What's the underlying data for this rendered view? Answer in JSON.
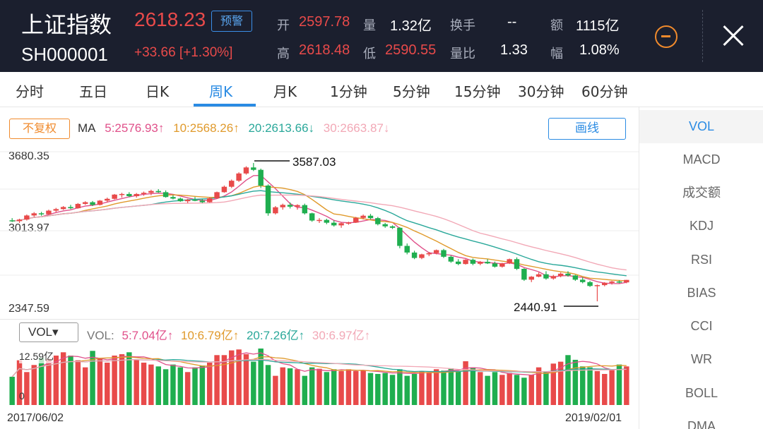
{
  "header": {
    "stock_name": "上证指数",
    "stock_code": "SH000001",
    "price": "2618.23",
    "alert_label": "预警",
    "change": "+33.66  [+1.30%]",
    "quote": [
      {
        "label": "开",
        "value": "2597.78",
        "color": "red"
      },
      {
        "label": "量",
        "value": "1.32亿",
        "color": "white"
      },
      {
        "label": "换手",
        "value": "--",
        "color": "white"
      },
      {
        "label": "额",
        "value": "1115亿",
        "color": "white"
      },
      {
        "label": "高",
        "value": "2618.48",
        "color": "red"
      },
      {
        "label": "低",
        "value": "2590.55",
        "color": "red"
      },
      {
        "label": "量比",
        "value": "1.33",
        "color": "white"
      },
      {
        "label": "幅",
        "value": "1.08%",
        "color": "white"
      }
    ]
  },
  "tabs": [
    "分时",
    "五日",
    "日K",
    "周K",
    "月K",
    "1分钟",
    "5分钟",
    "15分钟",
    "30分钟",
    "60分钟"
  ],
  "active_tab": "周K",
  "chart_toolbar": {
    "fuquan_label": "不复权",
    "draw_label": "画线",
    "ma_prefix": "MA",
    "ma": [
      {
        "text": "5:2576.93↑",
        "color": "#e0508a"
      },
      {
        "text": "10:2568.26↑",
        "color": "#e09a2c"
      },
      {
        "text": "20:2613.66↓",
        "color": "#2aa89a"
      },
      {
        "text": "30:2663.87↓",
        "color": "#f2a8b6"
      }
    ]
  },
  "price_axis": {
    "top": "3680.35",
    "mid": "3013.97",
    "bottom": "2347.59"
  },
  "annotations": {
    "high": "3587.03",
    "low": "2440.91"
  },
  "volume_toolbar": {
    "dropdown": "VOL▾",
    "prefix": "VOL:",
    "ma": [
      {
        "text": "5:7.04亿↑",
        "color": "#e0508a"
      },
      {
        "text": "10:6.79亿↑",
        "color": "#e09a2c"
      },
      {
        "text": "20:7.26亿↑",
        "color": "#2aa89a"
      },
      {
        "text": "30:6.97亿↑",
        "color": "#f2a8b6"
      }
    ]
  },
  "volume_axis": {
    "top": "12.59亿",
    "bottom": "0"
  },
  "date_axis": {
    "start": "2017/06/02",
    "end": "2019/02/01"
  },
  "indicators": [
    "VOL",
    "MACD",
    "成交额",
    "KDJ",
    "RSI",
    "BIAS",
    "CCI",
    "WR",
    "BOLL",
    "DMA"
  ],
  "active_indicator": "VOL",
  "colors": {
    "up": "#e84a4a",
    "down": "#1fae4f",
    "accent": "#2a8be3",
    "header_bg": "#1b1f2e"
  },
  "chart_data": {
    "type": "candlestick",
    "ylim": [
      2347.59,
      3680.35
    ],
    "candles": [
      [
        3112,
        3130,
        3098,
        3105
      ],
      [
        3105,
        3125,
        3090,
        3118
      ],
      [
        3118,
        3160,
        3110,
        3152
      ],
      [
        3152,
        3180,
        3140,
        3170
      ],
      [
        3170,
        3182,
        3150,
        3162
      ],
      [
        3162,
        3200,
        3158,
        3192
      ],
      [
        3192,
        3215,
        3180,
        3205
      ],
      [
        3205,
        3230,
        3198,
        3222
      ],
      [
        3222,
        3240,
        3205,
        3212
      ],
      [
        3212,
        3255,
        3208,
        3248
      ],
      [
        3248,
        3270,
        3240,
        3262
      ],
      [
        3262,
        3272,
        3230,
        3240
      ],
      [
        3240,
        3280,
        3235,
        3275
      ],
      [
        3275,
        3300,
        3260,
        3290
      ],
      [
        3290,
        3330,
        3285,
        3325
      ],
      [
        3325,
        3340,
        3300,
        3330
      ],
      [
        3330,
        3345,
        3305,
        3312
      ],
      [
        3312,
        3338,
        3300,
        3330
      ],
      [
        3330,
        3350,
        3315,
        3340
      ],
      [
        3340,
        3365,
        3320,
        3355
      ],
      [
        3355,
        3370,
        3340,
        3345
      ],
      [
        3345,
        3360,
        3300,
        3305
      ],
      [
        3305,
        3320,
        3285,
        3292
      ],
      [
        3292,
        3300,
        3265,
        3270
      ],
      [
        3270,
        3290,
        3255,
        3282
      ],
      [
        3282,
        3305,
        3270,
        3275
      ],
      [
        3275,
        3290,
        3255,
        3262
      ],
      [
        3262,
        3300,
        3258,
        3295
      ],
      [
        3295,
        3350,
        3290,
        3345
      ],
      [
        3345,
        3400,
        3340,
        3390
      ],
      [
        3390,
        3450,
        3380,
        3440
      ],
      [
        3440,
        3510,
        3430,
        3500
      ],
      [
        3500,
        3560,
        3490,
        3550
      ],
      [
        3550,
        3587.03,
        3520,
        3530
      ],
      [
        3530,
        3540,
        3380,
        3400
      ],
      [
        3400,
        3410,
        3150,
        3170
      ],
      [
        3170,
        3230,
        3160,
        3220
      ],
      [
        3220,
        3250,
        3200,
        3240
      ],
      [
        3240,
        3260,
        3210,
        3225
      ],
      [
        3225,
        3245,
        3200,
        3238
      ],
      [
        3238,
        3250,
        3160,
        3170
      ],
      [
        3170,
        3175,
        3100,
        3110
      ],
      [
        3110,
        3130,
        3090,
        3115
      ],
      [
        3115,
        3125,
        3080,
        3092
      ],
      [
        3092,
        3110,
        3060,
        3070
      ],
      [
        3070,
        3095,
        3050,
        3088
      ],
      [
        3088,
        3100,
        3075,
        3093
      ],
      [
        3093,
        3140,
        3090,
        3132
      ],
      [
        3132,
        3160,
        3120,
        3150
      ],
      [
        3150,
        3165,
        3120,
        3130
      ],
      [
        3130,
        3140,
        3070,
        3080
      ],
      [
        3080,
        3090,
        3050,
        3062
      ],
      [
        3062,
        3070,
        3040,
        3050
      ],
      [
        3050,
        3055,
        2880,
        2900
      ],
      [
        2900,
        2920,
        2830,
        2845
      ],
      [
        2845,
        2860,
        2790,
        2800
      ],
      [
        2800,
        2835,
        2790,
        2830
      ],
      [
        2830,
        2850,
        2815,
        2840
      ],
      [
        2840,
        2870,
        2830,
        2865
      ],
      [
        2865,
        2875,
        2800,
        2810
      ],
      [
        2810,
        2820,
        2760,
        2770
      ],
      [
        2770,
        2790,
        2740,
        2750
      ],
      [
        2750,
        2790,
        2745,
        2785
      ],
      [
        2785,
        2795,
        2740,
        2752
      ],
      [
        2752,
        2775,
        2740,
        2768
      ],
      [
        2768,
        2790,
        2750,
        2755
      ],
      [
        2755,
        2770,
        2720,
        2728
      ],
      [
        2728,
        2760,
        2720,
        2755
      ],
      [
        2755,
        2795,
        2750,
        2790
      ],
      [
        2790,
        2805,
        2700,
        2710
      ],
      [
        2710,
        2715,
        2610,
        2620
      ],
      [
        2620,
        2650,
        2600,
        2645
      ],
      [
        2645,
        2680,
        2640,
        2665
      ],
      [
        2665,
        2690,
        2620,
        2630
      ],
      [
        2630,
        2660,
        2620,
        2650
      ],
      [
        2650,
        2680,
        2640,
        2670
      ],
      [
        2670,
        2690,
        2645,
        2655
      ],
      [
        2655,
        2660,
        2610,
        2620
      ],
      [
        2620,
        2640,
        2590,
        2600
      ],
      [
        2600,
        2610,
        2560,
        2568
      ],
      [
        2568,
        2580,
        2440.91,
        2575
      ],
      [
        2575,
        2600,
        2565,
        2594
      ],
      [
        2594,
        2610,
        2580,
        2605
      ],
      [
        2605,
        2615,
        2590,
        2597
      ],
      [
        2597.78,
        2618.48,
        2590.55,
        2618.23
      ]
    ],
    "volume_ylim": [
      0,
      12.59
    ],
    "volumes": [
      6.0,
      9.5,
      7.0,
      8.5,
      10.0,
      9.8,
      10.5,
      11.2,
      10.5,
      9.5,
      8.0,
      11.5,
      10.0,
      9.0,
      10.5,
      10.8,
      11.2,
      9.6,
      9.0,
      8.6,
      8.2,
      7.6,
      8.6,
      8.0,
      7.0,
      8.0,
      8.4,
      9.0,
      10.6,
      10.6,
      11.6,
      11.8,
      10.8,
      9.2,
      12.0,
      8.5,
      6.2,
      8.0,
      7.8,
      7.6,
      6.2,
      8.0,
      7.7,
      7.0,
      7.6,
      7.2,
      7.6,
      7.2,
      7.4,
      6.8,
      6.6,
      6.8,
      6.4,
      7.6,
      6.2,
      6.6,
      7.2,
      7.0,
      7.6,
      7.3,
      7.8,
      7.2,
      9.3,
      8.0,
      7.0,
      6.2,
      7.0,
      6.4,
      6.8,
      6.4,
      5.8,
      6.4,
      8.0,
      7.2,
      8.8,
      9.2,
      10.6,
      9.6,
      8.2,
      8.0,
      7.2,
      6.6,
      7.4,
      8.6,
      8.2
    ]
  }
}
